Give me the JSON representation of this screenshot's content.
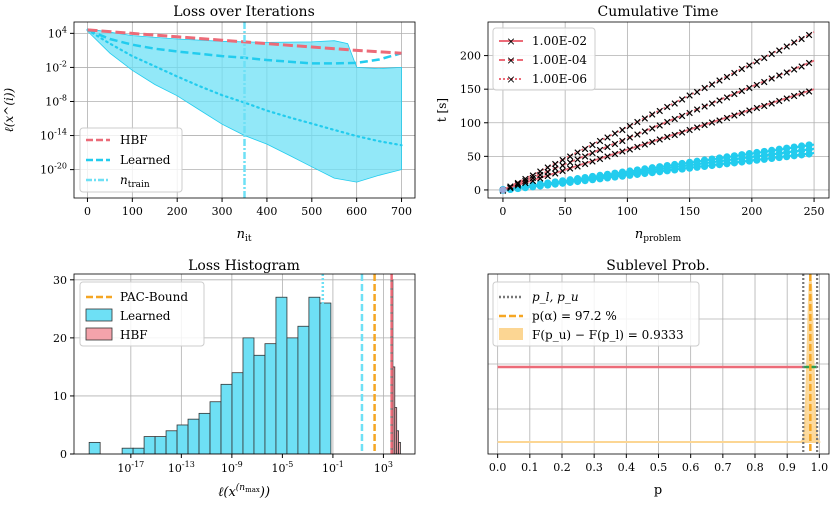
{
  "chart_data": [
    {
      "id": "loss",
      "type": "line",
      "title": "Loss over Iterations",
      "xlabel_main": "n",
      "xlabel_sub": "it",
      "ylabel": "ℓ(x^(i))",
      "xlim": [
        -30,
        730
      ],
      "yscale": "log",
      "ylim_exp": [
        -25,
        6
      ],
      "xticks": [
        0,
        100,
        200,
        300,
        400,
        500,
        600,
        700
      ],
      "yticks": [
        {
          "exp": 4,
          "label": "10^4"
        },
        {
          "exp": -2,
          "label": "10^-2"
        },
        {
          "exp": -8,
          "label": "10^-8"
        },
        {
          "exp": -14,
          "label": "10^-14"
        },
        {
          "exp": -20,
          "label": "10^-20"
        }
      ],
      "n_train": 350,
      "hbf_exp": [
        [
          0,
          4.6
        ],
        [
          100,
          4.0
        ],
        [
          200,
          3.4
        ],
        [
          300,
          2.8
        ],
        [
          400,
          2.2
        ],
        [
          500,
          1.6
        ],
        [
          600,
          1.0
        ],
        [
          700,
          0.5
        ]
      ],
      "learned_mean_exp": [
        [
          0,
          4.6
        ],
        [
          50,
          3.0
        ],
        [
          100,
          2.0
        ],
        [
          150,
          1.3
        ],
        [
          200,
          0.8
        ],
        [
          250,
          0.4
        ],
        [
          300,
          0.0
        ],
        [
          350,
          -0.3
        ],
        [
          400,
          -0.7
        ],
        [
          450,
          -1.0
        ],
        [
          500,
          -1.3
        ],
        [
          550,
          -1.3
        ],
        [
          600,
          -1.2
        ],
        [
          650,
          -0.6
        ],
        [
          700,
          0.5
        ]
      ],
      "learned_median_exp": [
        [
          0,
          4.6
        ],
        [
          50,
          2.2
        ],
        [
          100,
          0.0
        ],
        [
          150,
          -1.8
        ],
        [
          200,
          -3.6
        ],
        [
          250,
          -5.3
        ],
        [
          300,
          -6.9
        ],
        [
          350,
          -8.2
        ],
        [
          400,
          -9.6
        ],
        [
          450,
          -10.8
        ],
        [
          500,
          -11.9
        ],
        [
          550,
          -13.0
        ],
        [
          600,
          -14.1
        ],
        [
          650,
          -15.0
        ],
        [
          700,
          -15.7
        ]
      ],
      "learned_upper_exp": [
        [
          0,
          4.8
        ],
        [
          50,
          4.2
        ],
        [
          100,
          3.6
        ],
        [
          200,
          3.0
        ],
        [
          300,
          2.6
        ],
        [
          400,
          2.4
        ],
        [
          500,
          2.5
        ],
        [
          550,
          2.7
        ],
        [
          580,
          2.2
        ],
        [
          600,
          -2.0
        ],
        [
          650,
          -2.2
        ],
        [
          700,
          -2.0
        ]
      ],
      "learned_lower_exp": [
        [
          0,
          4.4
        ],
        [
          50,
          0.5
        ],
        [
          100,
          -2.5
        ],
        [
          150,
          -5.0
        ],
        [
          200,
          -7.0
        ],
        [
          250,
          -9.5
        ],
        [
          300,
          -12.0
        ],
        [
          350,
          -14.0
        ],
        [
          400,
          -15.5
        ],
        [
          450,
          -17.5
        ],
        [
          500,
          -19.5
        ],
        [
          550,
          -21.5
        ],
        [
          600,
          -22.2
        ],
        [
          650,
          -21.0
        ],
        [
          700,
          -20.0
        ]
      ],
      "legend": [
        "HBF",
        "Learned",
        "n_train"
      ],
      "legend_train_main": "n",
      "legend_train_sub": "train"
    },
    {
      "id": "cumtime",
      "type": "line",
      "title": "Cumulative Time",
      "xlabel_main": "n",
      "xlabel_sub": "problem",
      "ylabel": "t [s]",
      "xlim": [
        -12,
        262
      ],
      "ylim": [
        -12,
        250
      ],
      "xticks": [
        0,
        50,
        100,
        150,
        200,
        250
      ],
      "yticks": [
        0,
        50,
        100,
        150,
        200
      ],
      "series": [
        {
          "name": "1.00E-02",
          "slope": 0.6,
          "style": "solid"
        },
        {
          "name": "1.00E-04",
          "slope": 0.77,
          "style": "dashed"
        },
        {
          "name": "1.00E-06",
          "slope": 0.94,
          "style": "dotted"
        }
      ],
      "learned_slopes": [
        0.22,
        0.245,
        0.27
      ],
      "marker_step": 6
    },
    {
      "id": "hist",
      "type": "bar",
      "title": "Loss Histogram",
      "xlabel_main": "ℓ(x",
      "xlabel_sup": "(n",
      "xlabel_supsub": "max",
      "xlabel_end": "))",
      "xscale": "log",
      "xlim_exp": [
        -21.5,
        5.5
      ],
      "ylim": [
        0,
        31
      ],
      "yticks": [
        0,
        10,
        20,
        30
      ],
      "xticks": [
        {
          "exp": -17,
          "label": "10^-17"
        },
        {
          "exp": -13,
          "label": "10^-13"
        },
        {
          "exp": -9,
          "label": "10^-9"
        },
        {
          "exp": -5,
          "label": "10^-5"
        },
        {
          "exp": -1,
          "label": "10^-1"
        },
        {
          "exp": 3,
          "label": "10^3"
        }
      ],
      "learned_bin_start_exp": -20.3,
      "learned_bin_width_exp": 0.87,
      "learned_counts": [
        2,
        0,
        0,
        1,
        1,
        3,
        3,
        4,
        5,
        6,
        7,
        9,
        12,
        14,
        20,
        17,
        19,
        27,
        20,
        22,
        27,
        26
      ],
      "hbf_bins_exp": [
        [
          3.6,
          3.75,
          30
        ],
        [
          3.75,
          3.9,
          15
        ],
        [
          3.9,
          4.05,
          8
        ],
        [
          4.05,
          4.2,
          4
        ],
        [
          4.2,
          4.35,
          2
        ]
      ],
      "learned_mean_exp": -1.8,
      "learned_median_exp": 1.3,
      "pac_bound_exp": 2.3,
      "hbf_mean_exp": 3.65,
      "legend": [
        "PAC-Bound",
        "Learned",
        "HBF"
      ]
    },
    {
      "id": "sublevel",
      "type": "line",
      "title": "Sublevel Prob.",
      "xlabel": "p",
      "xlim": [
        -0.03,
        1.03
      ],
      "xticks": [
        "0.0",
        "0.1",
        "0.2",
        "0.3",
        "0.4",
        "0.5",
        "0.6",
        "0.7",
        "0.8",
        "0.9",
        "1.0"
      ],
      "p_l": 0.95,
      "p_u": 0.993,
      "p_alpha": 0.972,
      "legend": [
        "p_l, p_u",
        "p(α) = 97.2 %",
        "F(p_u) − F(p_l) = 0.9333"
      ]
    }
  ],
  "colors": {
    "hbf": "#ec6b78",
    "learned": "#22ccee",
    "learned_fill": "#6ee0f5",
    "pac": "#f5a623",
    "pac_fill": "#fcd693",
    "bound_marks": "#777777",
    "interval": "#2e9e50"
  }
}
